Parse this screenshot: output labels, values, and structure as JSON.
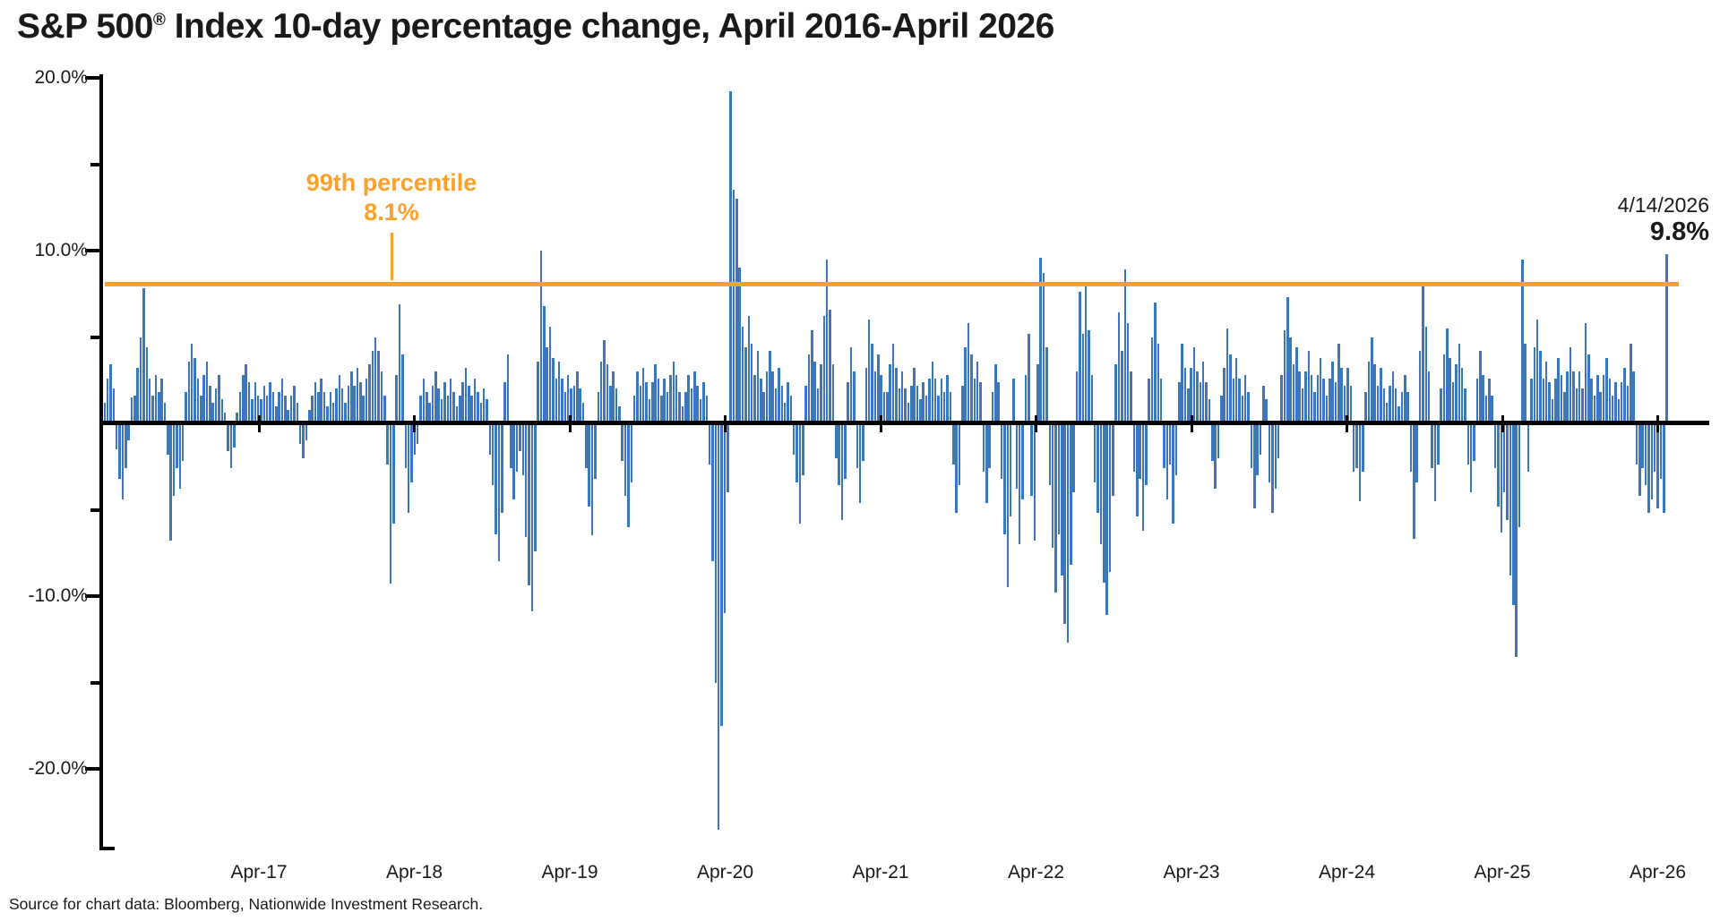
{
  "title": {
    "prefix": "S&P 500",
    "reg_mark": "®",
    "rest": " Index 10-day percentage change, April 2016-April 2026"
  },
  "annotations": {
    "percentile_label": "99th percentile",
    "percentile_value": "8.1%",
    "date_label": "4/14/2026",
    "date_value": "9.8%"
  },
  "y_axis": {
    "labels": [
      "20.0%",
      "10.0%",
      "-10.0%",
      "-20.0%"
    ]
  },
  "x_axis": {
    "labels": [
      "Apr-17",
      "Apr-18",
      "Apr-19",
      "Apr-20",
      "Apr-21",
      "Apr-22",
      "Apr-23",
      "Apr-24",
      "Apr-25",
      "Apr-26"
    ]
  },
  "source": "Source for chart data: Bloomberg, Nationwide Investment Research.",
  "colors": {
    "bar": "#3c76bb",
    "threshold": "#f9a12b",
    "text": "#1a1a1a",
    "axis": "#000000"
  },
  "chart_data": {
    "type": "bar",
    "title": "S&P 500 Index 10-day percentage change, April 2016-April 2026",
    "xlabel": "",
    "ylabel": "10-day percentage change",
    "ylim": [
      -25,
      20.8
    ],
    "grid": false,
    "x_start": "Apr-2016",
    "x_end": "Apr-2026",
    "points_per_year": 52,
    "threshold": {
      "label": "99th percentile",
      "value": 8.1
    },
    "last_point": {
      "date": "4/14/2026",
      "value": 9.8
    },
    "notable_points": {
      "jul_2016_spike": 7.8,
      "feb_2018_low": -9.3,
      "dec_2018_low": -10.9,
      "jan_2019_high": 10.0,
      "mar_2020_low": -23.5,
      "apr_2020_high": 19.2,
      "mar_2022_high": 9.6,
      "jun_2022_low": -12.7,
      "oct_2022_low": -11.1,
      "apr_2025_low": -13.5,
      "apr_2025_high": 9.5,
      "apr_2026_high": 9.8
    },
    "values": [
      1.2,
      2.6,
      3.4,
      2.0,
      -1.5,
      -3.2,
      -4.4,
      -2.6,
      -1.0,
      1.5,
      1.6,
      3.2,
      5.0,
      7.8,
      4.4,
      2.6,
      1.6,
      2.8,
      1.8,
      2.6,
      1.2,
      -1.8,
      -6.8,
      -4.2,
      -2.6,
      -3.8,
      -2.2,
      1.8,
      3.6,
      4.6,
      3.8,
      2.6,
      1.6,
      2.8,
      3.6,
      2.2,
      1.2,
      2.0,
      2.8,
      1.4,
      0.6,
      -1.6,
      -2.6,
      -1.4,
      0.6,
      1.8,
      2.8,
      3.4,
      2.4,
      1.4,
      2.4,
      1.6,
      1.4,
      2.2,
      1.6,
      2.4,
      1.8,
      1.0,
      1.8,
      2.6,
      1.6,
      0.8,
      1.6,
      2.2,
      1.2,
      -1.2,
      -2.0,
      -1.0,
      0.8,
      1.6,
      2.4,
      1.8,
      2.6,
      1.8,
      1.0,
      1.8,
      1.2,
      2.0,
      2.8,
      2.0,
      1.2,
      2.2,
      3.0,
      2.2,
      3.2,
      2.4,
      1.6,
      2.6,
      3.4,
      4.2,
      5.0,
      4.2,
      3.0,
      1.6,
      -2.4,
      -9.3,
      -5.8,
      2.8,
      6.9,
      4.0,
      -2.6,
      -5.2,
      -3.4,
      -1.8,
      -1.2,
      1.6,
      2.6,
      1.8,
      1.2,
      2.2,
      3.0,
      2.0,
      1.4,
      2.4,
      1.6,
      2.6,
      1.8,
      1.0,
      1.6,
      2.4,
      3.2,
      2.2,
      1.6,
      2.6,
      1.8,
      1.2,
      2.0,
      1.4,
      -1.8,
      -3.6,
      -6.4,
      -8.0,
      -5.2,
      2.4,
      4.0,
      -2.6,
      -4.4,
      -2.8,
      -1.6,
      -3.0,
      -6.6,
      -9.4,
      -10.9,
      -7.4,
      3.6,
      10.0,
      6.8,
      4.4,
      5.6,
      3.8,
      2.6,
      3.6,
      2.6,
      1.8,
      2.8,
      2.0,
      2.2,
      3.0,
      2.0,
      1.2,
      -2.6,
      -4.8,
      -6.5,
      -3.2,
      1.8,
      3.6,
      4.8,
      3.4,
      2.2,
      3.0,
      2.0,
      1.0,
      -2.2,
      -4.2,
      -6.0,
      -3.4,
      1.6,
      3.0,
      2.2,
      3.2,
      2.4,
      1.4,
      2.4,
      3.4,
      2.6,
      1.6,
      2.6,
      1.8,
      2.8,
      3.6,
      2.8,
      1.8,
      1.0,
      1.8,
      2.8,
      2.0,
      3.0,
      2.2,
      1.4,
      2.4,
      1.6,
      -2.4,
      -8.0,
      -15.0,
      -23.5,
      -17.5,
      -11.0,
      -4.0,
      19.2,
      13.5,
      13.0,
      9.0,
      5.6,
      4.4,
      6.2,
      4.6,
      2.8,
      4.2,
      2.6,
      1.8,
      3.0,
      4.2,
      3.0,
      2.0,
      3.2,
      2.2,
      1.2,
      2.4,
      1.6,
      -1.8,
      -3.4,
      -5.8,
      -3.0,
      2.2,
      4.0,
      5.4,
      3.6,
      2.0,
      3.4,
      6.2,
      9.5,
      6.6,
      3.4,
      -2.0,
      -3.6,
      -5.6,
      -3.2,
      2.4,
      4.4,
      3.0,
      -2.6,
      -4.6,
      -2.2,
      3.2,
      6.0,
      4.6,
      3.0,
      4.0,
      2.8,
      1.8,
      1.8,
      3.4,
      4.6,
      3.2,
      2.0,
      3.0,
      2.0,
      1.2,
      2.2,
      3.2,
      2.2,
      1.4,
      2.4,
      1.6,
      2.6,
      3.6,
      2.6,
      1.6,
      2.6,
      1.8,
      2.8,
      1.8,
      -2.4,
      -5.2,
      -3.6,
      2.2,
      4.4,
      5.8,
      4.0,
      2.6,
      3.6,
      2.4,
      -2.8,
      -4.6,
      -2.6,
      1.8,
      3.4,
      2.4,
      -3.2,
      -6.4,
      -9.5,
      -5.4,
      2.6,
      -3.8,
      -7.0,
      -4.4,
      2.8,
      5.2,
      -4.2,
      -6.8,
      3.4,
      9.6,
      8.7,
      4.4,
      -3.6,
      -7.2,
      -9.8,
      -6.4,
      -8.8,
      -11.6,
      -12.7,
      -8.2,
      -4.0,
      3.0,
      7.6,
      5.2,
      8.0,
      5.4,
      2.8,
      -3.4,
      -5.2,
      -7.0,
      -9.2,
      -11.1,
      -8.6,
      -4.2,
      3.4,
      6.4,
      4.2,
      8.9,
      5.8,
      3.0,
      -2.8,
      -5.4,
      -3.2,
      -6.2,
      -3.6,
      2.6,
      5.0,
      7.0,
      4.6,
      2.6,
      -2.6,
      -4.4,
      -2.4,
      -5.8,
      -3.0,
      2.4,
      4.6,
      3.2,
      2.0,
      3.2,
      4.4,
      3.0,
      2.4,
      3.6,
      2.4,
      1.4,
      -2.2,
      -3.8,
      -2.0,
      1.6,
      3.2,
      5.5,
      4.0,
      2.6,
      3.8,
      2.6,
      1.6,
      2.8,
      1.8,
      -2.6,
      -4.9,
      -3.0,
      -1.8,
      2.2,
      1.4,
      -3.4,
      -5.2,
      -3.8,
      -2.0,
      2.8,
      5.4,
      7.3,
      5.0,
      3.4,
      4.4,
      3.0,
      2.0,
      3.0,
      4.2,
      2.8,
      1.8,
      2.8,
      3.8,
      2.6,
      1.6,
      2.6,
      3.6,
      2.4,
      4.6,
      3.2,
      2.2,
      3.2,
      2.2,
      -2.8,
      -2.6,
      -4.5,
      -2.8,
      1.8,
      3.6,
      5.0,
      3.4,
      2.2,
      3.2,
      2.0,
      1.2,
      2.2,
      3.0,
      2.0,
      1.0,
      1.8,
      2.8,
      1.8,
      -2.8,
      -6.7,
      -3.4,
      4.2,
      8.2,
      5.6,
      3.0,
      -2.6,
      -4.5,
      -2.4,
      2.0,
      4.0,
      5.5,
      3.8,
      2.4,
      3.4,
      4.6,
      3.2,
      2.0,
      -2.4,
      -4.0,
      -2.2,
      2.6,
      4.2,
      2.8,
      1.6,
      2.6,
      1.6,
      -2.6,
      -4.8,
      -6.3,
      -4.0,
      -5.6,
      -8.8,
      -10.5,
      -13.5,
      -6.0,
      9.5,
      4.6,
      -2.8,
      2.6,
      4.4,
      6.0,
      4.2,
      2.6,
      3.6,
      2.4,
      1.4,
      2.6,
      3.8,
      2.8,
      1.8,
      3.0,
      4.4,
      3.0,
      2.0,
      3.0,
      2.0,
      5.8,
      4.0,
      2.6,
      1.6,
      2.8,
      1.8,
      2.8,
      3.8,
      2.6,
      1.6,
      2.4,
      1.4,
      2.4,
      3.2,
      2.2,
      4.6,
      3.0,
      -2.4,
      -4.2,
      -2.6,
      -3.6,
      -5.2,
      -4.4,
      -2.8,
      -4.9,
      -3.2,
      -5.2,
      9.8
    ]
  }
}
